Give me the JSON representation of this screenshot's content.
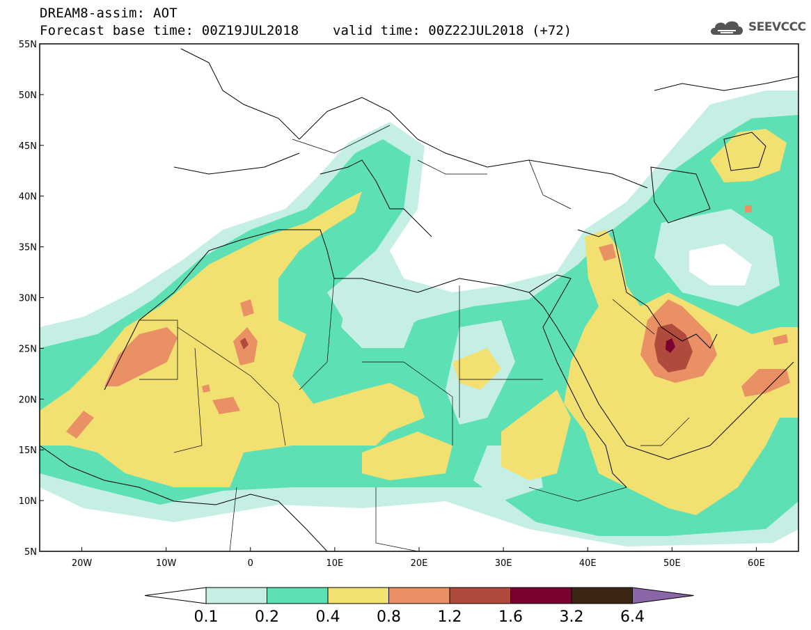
{
  "header": {
    "line1": "DREAM8-assim: AOT",
    "line2": "Forecast base time: 00Z19JUL2018",
    "valid": "valid time: 00Z22JUL2018 (+72)"
  },
  "logo": {
    "text": "SEEVCCC",
    "icon": "cloud-icon"
  },
  "map": {
    "lon_range": [
      -25,
      65
    ],
    "lat_range": [
      5,
      55
    ],
    "lat_ticks": [
      {
        "value": 55,
        "label": "55N"
      },
      {
        "value": 50,
        "label": "50N"
      },
      {
        "value": 45,
        "label": "45N"
      },
      {
        "value": 40,
        "label": "40N"
      },
      {
        "value": 35,
        "label": "35N"
      },
      {
        "value": 30,
        "label": "30N"
      },
      {
        "value": 25,
        "label": "25N"
      },
      {
        "value": 20,
        "label": "20N"
      },
      {
        "value": 15,
        "label": "15N"
      },
      {
        "value": 10,
        "label": "10N"
      },
      {
        "value": 5,
        "label": "5N"
      }
    ],
    "lon_ticks": [
      {
        "value": -20,
        "label": "20W"
      },
      {
        "value": -10,
        "label": "10W"
      },
      {
        "value": 0,
        "label": "0"
      },
      {
        "value": 10,
        "label": "10E"
      },
      {
        "value": 20,
        "label": "20E"
      },
      {
        "value": 30,
        "label": "30E"
      },
      {
        "value": 40,
        "label": "40E"
      },
      {
        "value": 50,
        "label": "50E"
      },
      {
        "value": 60,
        "label": "60E"
      }
    ]
  },
  "colorbar": {
    "labels": [
      "0.1",
      "0.2",
      "0.4",
      "0.8",
      "1.2",
      "1.6",
      "3.2",
      "6.4"
    ],
    "colors": [
      "#ffffff",
      "#c5efe5",
      "#5ee0b5",
      "#f2e070",
      "#ea9065",
      "#b04a3c",
      "#7a0030",
      "#3b2514",
      "#8a66a8"
    ]
  },
  "level_colors": {
    "l1": "#c5efe5",
    "l2": "#5ee0b5",
    "l3": "#f2e070",
    "l4": "#ea9065",
    "l5": "#b04a3c",
    "l6": "#7a0030"
  }
}
